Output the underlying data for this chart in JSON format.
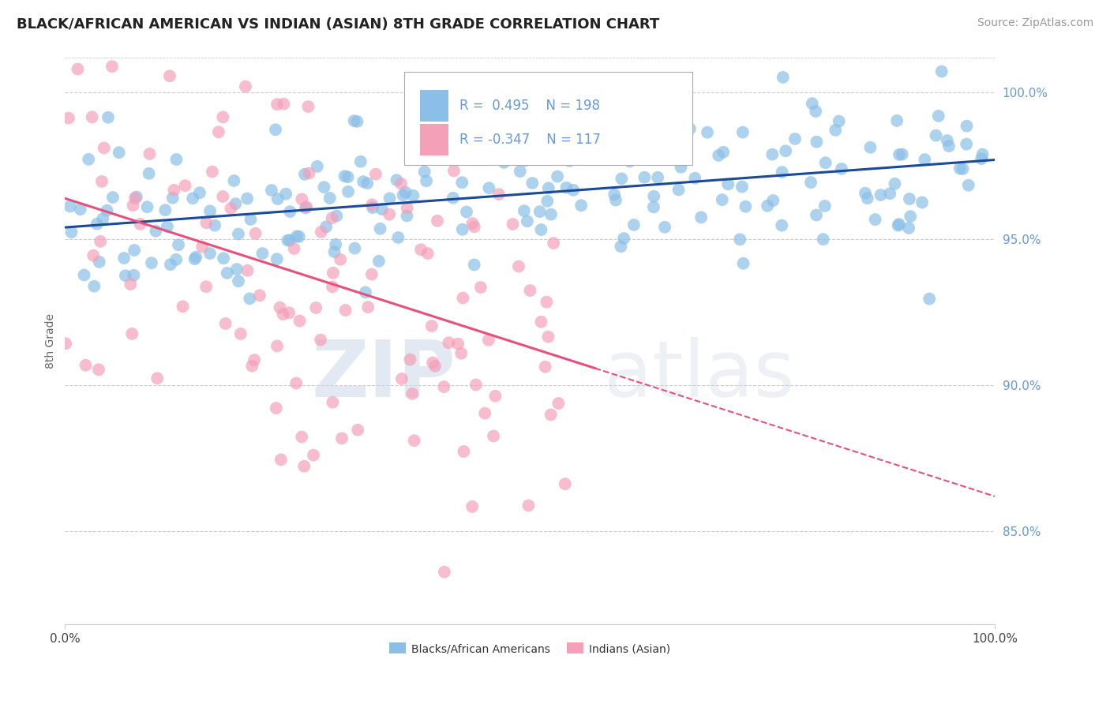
{
  "title": "BLACK/AFRICAN AMERICAN VS INDIAN (ASIAN) 8TH GRADE CORRELATION CHART",
  "source": "Source: ZipAtlas.com",
  "ylabel": "8th Grade",
  "ytick_values": [
    0.85,
    0.9,
    0.95,
    1.0
  ],
  "xlim": [
    0.0,
    1.0
  ],
  "ylim": [
    0.818,
    1.012
  ],
  "blue_R": 0.495,
  "blue_N": 198,
  "pink_R": -0.347,
  "pink_N": 117,
  "blue_color": "#8bbfe8",
  "pink_color": "#f4a0b8",
  "blue_line_color": "#1a4a9a",
  "pink_line_color": "#e8507a",
  "legend_label_blue": "Blacks/African Americans",
  "legend_label_pink": "Indians (Asian)",
  "watermark_zip": "ZIP",
  "watermark_atlas": "atlas",
  "background_color": "#ffffff",
  "title_fontsize": 13,
  "source_fontsize": 10,
  "grid_color": "#cccccc",
  "ytick_color": "#6699dd",
  "seed_blue": 42,
  "seed_pink": 7
}
